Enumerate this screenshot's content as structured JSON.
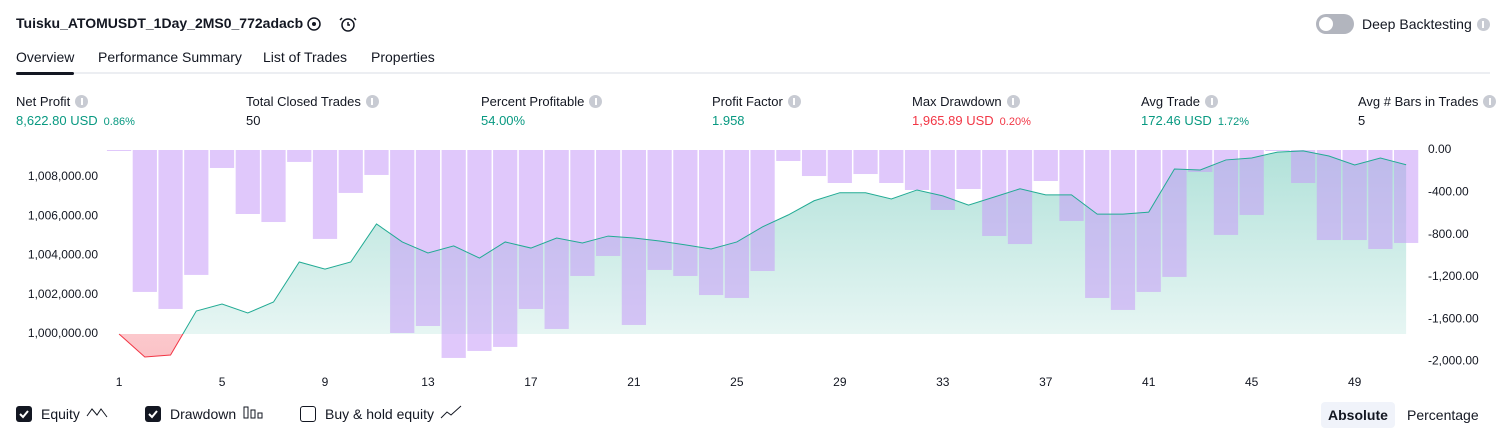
{
  "header": {
    "title": "Tuisku_ATOMUSDT_1Day_2MS0_772adacb",
    "toggle_label": "Deep Backtesting"
  },
  "tabs": [
    "Overview",
    "Performance Summary",
    "List of Trades",
    "Properties"
  ],
  "active_tab": 0,
  "stats": [
    {
      "label": "Net Profit",
      "value": "8,622.80 USD",
      "percent": "0.86%",
      "color": "#089981"
    },
    {
      "label": "Total Closed Trades",
      "value": "50",
      "color": "#131722"
    },
    {
      "label": "Percent Profitable",
      "value": "54.00%",
      "color": "#089981"
    },
    {
      "label": "Profit Factor",
      "value": "1.958",
      "color": "#089981"
    },
    {
      "label": "Max Drawdown",
      "value": "1,965.89 USD",
      "percent": "0.20%",
      "color": "#f23645"
    },
    {
      "label": "Avg Trade",
      "value": "172.46 USD",
      "percent": "1.72%",
      "color": "#089981"
    },
    {
      "label": "Avg # Bars in Trades",
      "value": "5",
      "color": "#131722"
    }
  ],
  "chart_data": {
    "type": "equity_drawdown",
    "x": [
      1,
      2,
      3,
      4,
      5,
      6,
      7,
      8,
      9,
      10,
      11,
      12,
      13,
      14,
      15,
      16,
      17,
      18,
      19,
      20,
      21,
      22,
      23,
      24,
      25,
      26,
      27,
      28,
      29,
      30,
      31,
      32,
      33,
      34,
      35,
      36,
      37,
      38,
      39,
      40,
      41,
      42,
      43,
      44,
      45,
      46,
      47,
      48,
      49,
      50,
      51
    ],
    "xlim": [
      0.57,
      51.5
    ],
    "xticks": [
      1,
      5,
      9,
      13,
      17,
      21,
      25,
      29,
      33,
      37,
      41,
      45,
      49
    ],
    "ylim": [
      998166,
      1009376
    ],
    "yticks": [
      {
        "value": 1000000,
        "label": "1,000,000.00"
      },
      {
        "value": 1002000,
        "label": "1,002,000.00"
      },
      {
        "value": 1004000,
        "label": "1,004,000.00"
      },
      {
        "value": 1006000,
        "label": "1,006,000.00"
      },
      {
        "value": 1008000,
        "label": "1,008,000.00"
      }
    ],
    "y2lim": [
      -2080,
      0
    ],
    "y2ticks": [
      {
        "value": 0,
        "label": "0.00"
      },
      {
        "value": -400,
        "label": "-400.00"
      },
      {
        "value": -800,
        "label": "-800.00"
      },
      {
        "value": -1200,
        "label": "-1,200.00"
      },
      {
        "value": -1600,
        "label": "-1,600.00"
      },
      {
        "value": -2000,
        "label": "-2,000.00"
      }
    ],
    "baseline": 1000000,
    "grid": false,
    "series": [
      {
        "name": "Equity",
        "color": "#22ab94",
        "below_color": "#f23645",
        "values": [
          1000000,
          998830,
          998930,
          1001170,
          1001530,
          1001070,
          1001630,
          1003670,
          1003310,
          1003670,
          1005610,
          1004690,
          1004130,
          1004490,
          1003870,
          1004690,
          1004380,
          1004890,
          1004640,
          1004990,
          1004890,
          1004740,
          1004540,
          1004330,
          1004690,
          1005460,
          1006070,
          1006790,
          1007200,
          1007200,
          1006880,
          1007340,
          1007040,
          1006570,
          1006980,
          1007400,
          1007090,
          1007090,
          1006110,
          1006110,
          1006210,
          1008410,
          1008360,
          1008870,
          1008970,
          1009270,
          1009330,
          1009070,
          1008610,
          1008970,
          1008623
        ]
      },
      {
        "name": "Drawdown",
        "color": "#c79bf7",
        "axis": "y2",
        "values": [
          0,
          -1342,
          -1503,
          -1181,
          -170,
          -605,
          -681,
          -113,
          -841,
          -406,
          -236,
          -1730,
          -1664,
          -1966,
          -1900,
          -1862,
          -1503,
          -1692,
          -1191,
          -1002,
          -1654,
          -1134,
          -1191,
          -1371,
          -1399,
          -1144,
          -104,
          -246,
          -312,
          -227,
          -312,
          -378,
          -567,
          -369,
          -813,
          -889,
          -293,
          -671,
          -1399,
          -1512,
          -1342,
          -1200,
          -208,
          -803,
          -614,
          -9,
          -312,
          -851,
          -851,
          -936,
          -879
        ]
      }
    ],
    "extra_legend": [
      {
        "label": "Buy & hold equity",
        "checked": false
      }
    ],
    "scale_modes": [
      "Absolute",
      "Percentage"
    ],
    "active_scale": 0
  }
}
